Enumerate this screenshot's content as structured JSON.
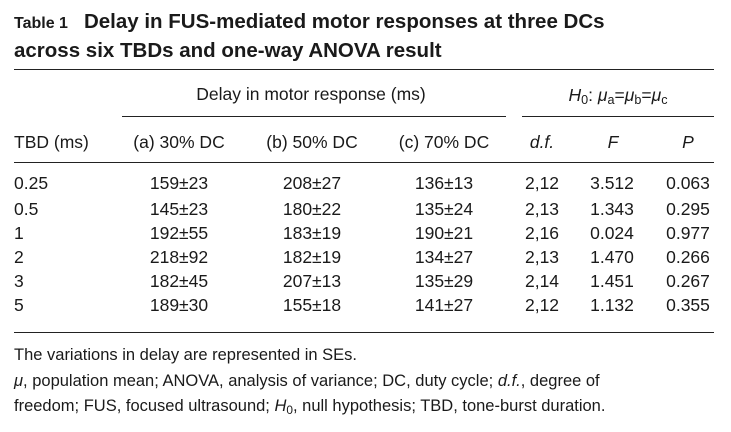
{
  "title": {
    "label": "Table 1",
    "line1": "Delay in FUS-mediated motor responses at three DCs",
    "line2": "across six TBDs and one-way ANOVA result"
  },
  "header": {
    "group_delay": "Delay in motor response (ms)",
    "group_anova": {
      "H": "H",
      "H_sub": "0",
      "colon": ": ",
      "mu": "μ",
      "a": "a",
      "b": "b",
      "c": "c",
      "eq": "="
    },
    "columns": [
      "TBD (ms)",
      "(a) 30% DC",
      "(b) 50% DC",
      "(c) 70% DC",
      "d.f.",
      "F",
      "P"
    ]
  },
  "rows": [
    [
      "0.25",
      "159±23",
      "208±27",
      "136±13",
      "2,12",
      "3.512",
      "0.063"
    ],
    [
      "0.5",
      "145±23",
      "180±22",
      "135±24",
      "2,13",
      "1.343",
      "0.295"
    ],
    [
      "1",
      "192±55",
      "183±19",
      "190±21",
      "2,16",
      "0.024",
      "0.977"
    ],
    [
      "2",
      "218±92",
      "182±19",
      "134±27",
      "2,13",
      "1.470",
      "0.266"
    ],
    [
      "3",
      "182±45",
      "207±13",
      "135±29",
      "2,14",
      "1.451",
      "0.267"
    ],
    [
      "5",
      "189±30",
      "155±18",
      "141±27",
      "2,12",
      "1.132",
      "0.355"
    ]
  ],
  "footnotes": {
    "line1": "The variations in delay are represented in SEs.",
    "mu": "μ",
    "t1": ", population mean; ANOVA, analysis of variance; DC, duty cycle; ",
    "df": "d.f.",
    "t2": ", degree of",
    "t3": "freedom; FUS, focused ultrasound; ",
    "H": "H",
    "H_sub": "0",
    "t4": ", null hypothesis; TBD, tone-burst duration."
  }
}
